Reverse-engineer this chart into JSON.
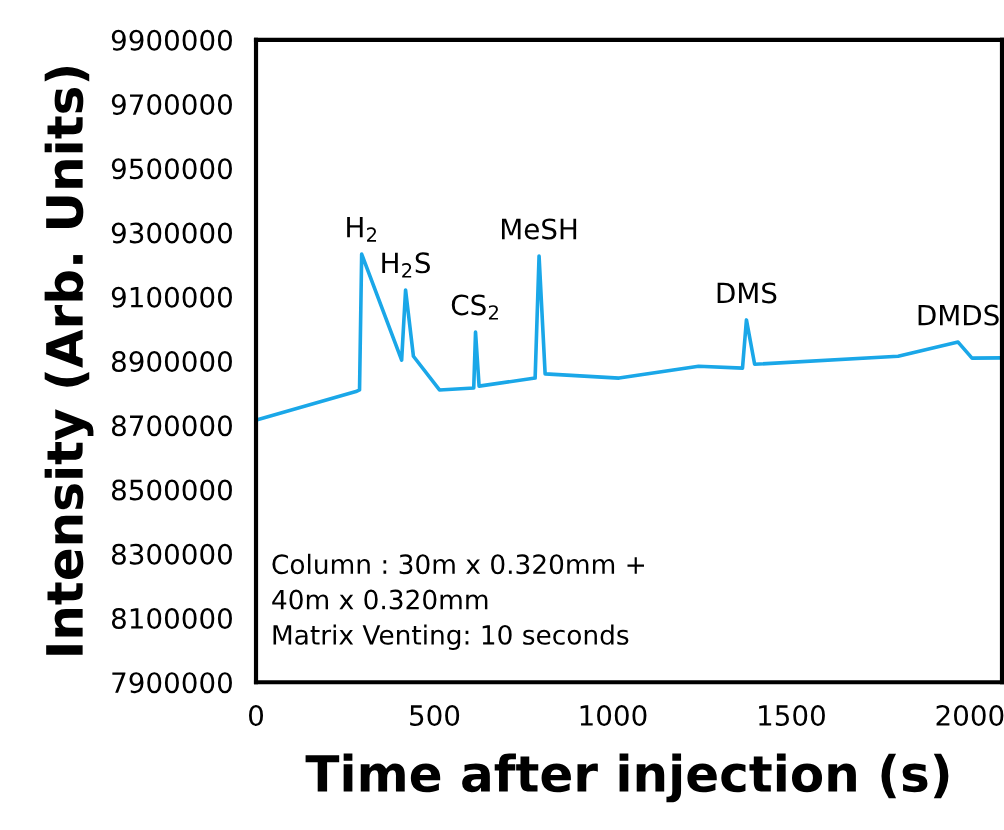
{
  "chart_data": {
    "type": "line",
    "xlabel": "Time after injection (s)",
    "ylabel": "Intensity (Arb. Units)",
    "x": [
      0,
      280,
      290,
      296,
      408,
      419,
      441,
      514,
      610,
      615,
      625,
      782,
      793,
      810,
      1017,
      1240,
      1363,
      1374,
      1397,
      1799,
      1967,
      2006,
      2090
    ],
    "series": [
      {
        "color": "#1aa7e8",
        "values": [
          8716000,
          8805000,
          8810000,
          9233000,
          8903000,
          9121000,
          8915000,
          8810000,
          8816000,
          8990000,
          8822000,
          8847000,
          9227000,
          8860000,
          8847000,
          8884000,
          8878000,
          9028000,
          8890000,
          8915000,
          8959000,
          8909000,
          8910000
        ]
      }
    ],
    "xlim": [
      0,
      2090
    ],
    "xticks": [
      0,
      500,
      1000,
      1500,
      2000
    ],
    "ylim": [
      7900000,
      9900000
    ],
    "yticks": [
      7900000,
      8100000,
      8300000,
      8500000,
      8700000,
      8900000,
      9100000,
      9300000,
      9500000,
      9700000,
      9900000
    ],
    "grid": false,
    "legend": false,
    "marker": "none",
    "line_style": "solid",
    "annotations": [
      {
        "text": "H$_{2}$",
        "x": 296,
        "y": 9233000
      },
      {
        "text": "H$_{2}$S",
        "x": 419,
        "y": 9121000
      },
      {
        "text": "CS$_{2}$",
        "x": 615,
        "y": 8990000
      },
      {
        "text": "MeSH",
        "x": 793,
        "y": 9227000
      },
      {
        "text": "DMS",
        "x": 1374,
        "y": 9028000
      },
      {
        "text": "DMDS",
        "x": 1967,
        "y": 8959000
      },
      "Column : 30m x 0.320mm +",
      "40m x 0.320mm",
      "Matrix Venting: 10 seconds"
    ]
  }
}
